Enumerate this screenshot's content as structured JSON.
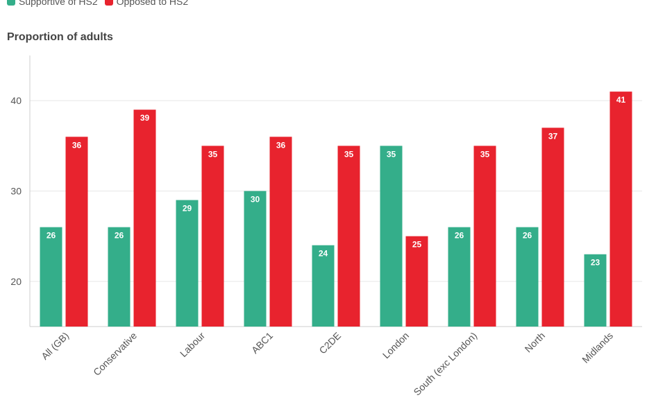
{
  "chart_data": {
    "type": "bar",
    "title": "",
    "ylabel": "Proportion of adults",
    "xlabel": "",
    "ylim": [
      15,
      45
    ],
    "yticks": [
      20,
      30,
      40
    ],
    "grid": true,
    "legend_position": "top-left",
    "categories": [
      "All (GB)",
      "Conservative",
      "Labour",
      "ABC1",
      "C2DE",
      "London",
      "South (exc London)",
      "North",
      "Midlands"
    ],
    "series": [
      {
        "name": "Supportive of HS2",
        "color": "#34ae8a",
        "values": [
          26,
          26,
          29,
          30,
          24,
          35,
          26,
          26,
          23
        ]
      },
      {
        "name": "Opposed to HS2",
        "color": "#e8232e",
        "values": [
          36,
          39,
          35,
          36,
          35,
          25,
          35,
          37,
          41
        ]
      }
    ]
  }
}
